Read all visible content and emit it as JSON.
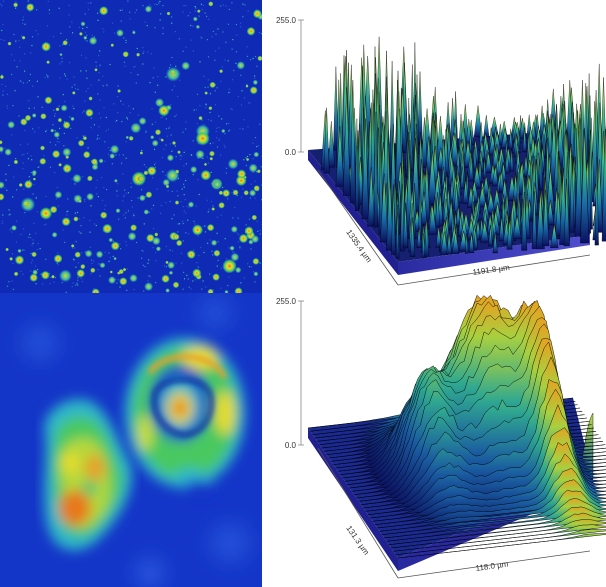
{
  "panels": {
    "top": {
      "z_max": "255.0",
      "z_min": "0.0",
      "depth_label": "1335.4 µm",
      "width_label": "1191.8 µm"
    },
    "bottom": {
      "z_max": "255.0",
      "z_min": "0.0",
      "depth_label": "131.3 µm",
      "width_label": "118.0 µm"
    }
  },
  "colors": {
    "background_blue": "#1432c8",
    "deep_blue": "#0a1e96",
    "cyan": "#2fb7c8",
    "green": "#48c860",
    "yellow": "#e6dc2a",
    "orange": "#e8781e",
    "floor": "#2a2aa0"
  }
}
